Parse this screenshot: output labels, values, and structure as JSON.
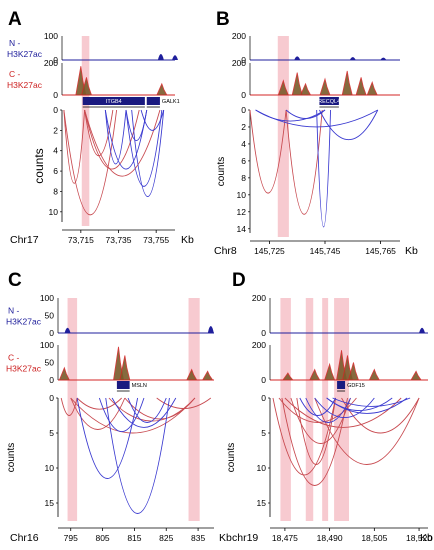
{
  "colors": {
    "n_track": "#1f1f9c",
    "c_track": "#d32626",
    "c_fill": "#7a5a2a",
    "highlight": "#f4b8c0",
    "loop_red": "#c84a50",
    "loop_blue": "#3a3ad0",
    "gene_box": "#1a1a80"
  },
  "chart_data": [
    {
      "panel": "A",
      "type": "line",
      "chromosome": "Chr17",
      "unit": "Kb",
      "xlim": [
        73705,
        73765
      ],
      "x_ticks": [
        "73,715",
        "73,735",
        "73,755"
      ],
      "x_tick_values": [
        73715,
        73735,
        73755
      ],
      "tracks": {
        "n_label": [
          "N -",
          "H3K27ac"
        ],
        "c_label": [
          "C -",
          "H3K27ac"
        ],
        "n_ticks": [
          "100",
          "0"
        ],
        "c_ticks": [
          "200",
          "0"
        ]
      },
      "n_peaks": [
        [
          73757.5,
          0.25
        ],
        [
          73765,
          0.2
        ]
      ],
      "c_peaks": [
        [
          73715,
          0.9
        ],
        [
          73718,
          0.55
        ],
        [
          73758,
          0.35
        ]
      ],
      "highlights": [
        [
          73715.5,
          73719.5
        ]
      ],
      "genes": [
        {
          "name": "ITGB4",
          "start": 73716,
          "end": 73749
        },
        {
          "name": "GALK1",
          "start": 73750,
          "end": 73757
        }
      ],
      "arc_axis": {
        "ylabel": "counts",
        "ticks": [
          "0",
          "2",
          "4",
          "6",
          "8",
          "10"
        ],
        "tick_values": [
          0,
          2,
          4,
          6,
          8,
          10
        ],
        "ylim": [
          0,
          11
        ]
      },
      "loops": [
        {
          "start": 73706,
          "end": 73717,
          "count": 7.2,
          "color": "red"
        },
        {
          "start": 73706,
          "end": 73734,
          "count": 10.3,
          "color": "red"
        },
        {
          "start": 73717,
          "end": 73732,
          "count": 4.5,
          "color": "red"
        },
        {
          "start": 73717,
          "end": 73746,
          "count": 5.8,
          "color": "red"
        },
        {
          "start": 73717,
          "end": 73757,
          "count": 6.5,
          "color": "red"
        },
        {
          "start": 73728,
          "end": 73739,
          "count": 5.3,
          "color": "blue"
        },
        {
          "start": 73728,
          "end": 73750,
          "count": 5.8,
          "color": "blue"
        },
        {
          "start": 73739,
          "end": 73758,
          "count": 7.5,
          "color": "blue"
        },
        {
          "start": 73742,
          "end": 73759,
          "count": 8.5,
          "color": "blue"
        },
        {
          "start": 73747,
          "end": 73759,
          "count": 2.0,
          "color": "blue"
        },
        {
          "start": 73739,
          "end": 73750,
          "count": 3.0,
          "color": "blue"
        }
      ]
    },
    {
      "panel": "B",
      "type": "line",
      "chromosome": "Chr8",
      "unit": "Kb",
      "xlim": [
        145718,
        145772
      ],
      "x_ticks": [
        "145,725",
        "145,745",
        "145,765"
      ],
      "x_tick_values": [
        145725,
        145745,
        145765
      ],
      "tracks": {
        "n_ticks": [
          "200",
          "0"
        ],
        "c_ticks": [
          "200",
          "0"
        ]
      },
      "n_peaks": [
        [
          145735,
          0.15
        ],
        [
          145755,
          0.12
        ],
        [
          145766,
          0.1
        ]
      ],
      "c_peaks": [
        [
          145730,
          0.45
        ],
        [
          145735,
          0.7
        ],
        [
          145738,
          0.35
        ],
        [
          145745,
          0.5
        ],
        [
          145753,
          0.75
        ],
        [
          145758,
          0.55
        ],
        [
          145762,
          0.4
        ]
      ],
      "highlights": [
        [
          145728,
          145732
        ]
      ],
      "genes": [
        {
          "name": "RECQL4",
          "start": 145743,
          "end": 145750
        }
      ],
      "arc_axis": {
        "ylabel": "counts",
        "ticks": [
          "0",
          "2",
          "4",
          "6",
          "8",
          "10",
          "12",
          "14"
        ],
        "tick_values": [
          0,
          2,
          4,
          6,
          8,
          10,
          12,
          14
        ],
        "ylim": [
          0,
          14.5
        ]
      },
      "loops": [
        {
          "start": 145718,
          "end": 145731,
          "count": 9.8,
          "color": "red"
        },
        {
          "start": 145731,
          "end": 145744,
          "count": 12.3,
          "color": "red"
        },
        {
          "start": 145720,
          "end": 145764,
          "count": 2.0,
          "color": "blue"
        },
        {
          "start": 145720,
          "end": 145745,
          "count": 1.3,
          "color": "blue"
        },
        {
          "start": 145731,
          "end": 145745,
          "count": 1.0,
          "color": "blue"
        },
        {
          "start": 145742,
          "end": 145747,
          "count": 13.8,
          "color": "blue"
        },
        {
          "start": 145743,
          "end": 145764,
          "count": 3.5,
          "color": "blue"
        }
      ]
    },
    {
      "panel": "C",
      "type": "line",
      "chromosome": "Chr16",
      "unit": "Kb",
      "xlim": [
        791,
        840
      ],
      "x_ticks": [
        "795",
        "805",
        "815",
        "825",
        "835"
      ],
      "x_tick_values": [
        795,
        805,
        815,
        825,
        835
      ],
      "tracks": {
        "n_label": [
          "N -",
          "H3K27ac"
        ],
        "c_label": [
          "C -",
          "H3K27ac"
        ],
        "n_ticks": [
          "100",
          "50",
          "0"
        ],
        "c_ticks": [
          "100",
          "50",
          "0"
        ]
      },
      "n_peaks": [
        [
          794,
          0.15
        ],
        [
          839,
          0.2
        ]
      ],
      "c_peaks": [
        [
          793,
          0.35
        ],
        [
          810,
          0.95
        ],
        [
          812,
          0.7
        ],
        [
          833,
          0.3
        ],
        [
          838,
          0.25
        ]
      ],
      "highlights": [
        [
          794,
          797
        ],
        [
          832,
          835.5
        ]
      ],
      "genes": [
        {
          "name": "MSLN",
          "start": 809.5,
          "end": 813.5
        }
      ],
      "arc_axis": {
        "ylabel": "counts",
        "ticks": [
          "0",
          "5",
          "10",
          "15"
        ],
        "tick_values": [
          0,
          5,
          10,
          15
        ],
        "ylim": [
          0,
          17
        ]
      },
      "loops": [
        {
          "start": 792,
          "end": 797,
          "count": 2.5,
          "color": "red"
        },
        {
          "start": 795,
          "end": 812,
          "count": 4.5,
          "color": "red"
        },
        {
          "start": 795,
          "end": 834,
          "count": 5.0,
          "color": "red"
        },
        {
          "start": 812,
          "end": 834,
          "count": 3.0,
          "color": "red"
        },
        {
          "start": 807,
          "end": 834,
          "count": 3.3,
          "color": "red"
        },
        {
          "start": 797,
          "end": 811,
          "count": 1.6,
          "color": "red"
        },
        {
          "start": 822,
          "end": 839,
          "count": 1.5,
          "color": "red"
        },
        {
          "start": 797,
          "end": 816,
          "count": 11.5,
          "color": "blue"
        },
        {
          "start": 806,
          "end": 826,
          "count": 16.5,
          "color": "blue"
        },
        {
          "start": 813,
          "end": 825,
          "count": 3.5,
          "color": "blue"
        },
        {
          "start": 804,
          "end": 818,
          "count": 4.8,
          "color": "blue"
        },
        {
          "start": 808,
          "end": 828,
          "count": 4.2,
          "color": "blue"
        }
      ]
    },
    {
      "panel": "D",
      "type": "line",
      "chromosome": "chr19",
      "unit": "Kb",
      "xlim": [
        18470,
        18523
      ],
      "x_ticks": [
        "18,475",
        "18,490",
        "18,505",
        "18,520"
      ],
      "x_tick_values": [
        18475,
        18490,
        18505,
        18520
      ],
      "tracks": {
        "n_ticks": [
          "200",
          "0"
        ],
        "c_ticks": [
          "200",
          "0"
        ]
      },
      "n_peaks": [
        [
          18521,
          0.15
        ]
      ],
      "c_peaks": [
        [
          18476,
          0.2
        ],
        [
          18485,
          0.3
        ],
        [
          18490,
          0.45
        ],
        [
          18494,
          0.85
        ],
        [
          18496,
          0.7
        ],
        [
          18498,
          0.5
        ],
        [
          18505,
          0.3
        ],
        [
          18519,
          0.25
        ]
      ],
      "highlights": [
        [
          18473.5,
          18477
        ],
        [
          18482,
          18484.5
        ],
        [
          18487.5,
          18489.5
        ],
        [
          18491.5,
          18496.5
        ]
      ],
      "genes": [
        {
          "name": "GDF15",
          "start": 18492.5,
          "end": 18495
        }
      ],
      "arc_axis": {
        "ylabel": "counts",
        "ticks": [
          "0",
          "5",
          "10",
          "15"
        ],
        "tick_values": [
          0,
          5,
          10,
          15
        ],
        "ylim": [
          0,
          17
        ]
      },
      "loops": [
        {
          "start": 18471,
          "end": 18492,
          "count": 11.0,
          "color": "red"
        },
        {
          "start": 18474,
          "end": 18496,
          "count": 12.5,
          "color": "red"
        },
        {
          "start": 18479,
          "end": 18492,
          "count": 9.5,
          "color": "red"
        },
        {
          "start": 18485,
          "end": 18520,
          "count": 9.5,
          "color": "red"
        },
        {
          "start": 18477,
          "end": 18497,
          "count": 6.5,
          "color": "red"
        },
        {
          "start": 18475,
          "end": 18514,
          "count": 4.2,
          "color": "red"
        },
        {
          "start": 18494,
          "end": 18520,
          "count": 5.0,
          "color": "red"
        },
        {
          "start": 18473,
          "end": 18499,
          "count": 3.5,
          "color": "red"
        },
        {
          "start": 18480,
          "end": 18492,
          "count": 2.5,
          "color": "blue"
        },
        {
          "start": 18482,
          "end": 18497,
          "count": 3.5,
          "color": "blue"
        },
        {
          "start": 18485,
          "end": 18505,
          "count": 2.8,
          "color": "blue"
        },
        {
          "start": 18489,
          "end": 18511,
          "count": 1.8,
          "color": "blue"
        },
        {
          "start": 18489,
          "end": 18516,
          "count": 2.2,
          "color": "blue"
        },
        {
          "start": 18491,
          "end": 18517,
          "count": 1.2,
          "color": "blue"
        }
      ]
    }
  ]
}
